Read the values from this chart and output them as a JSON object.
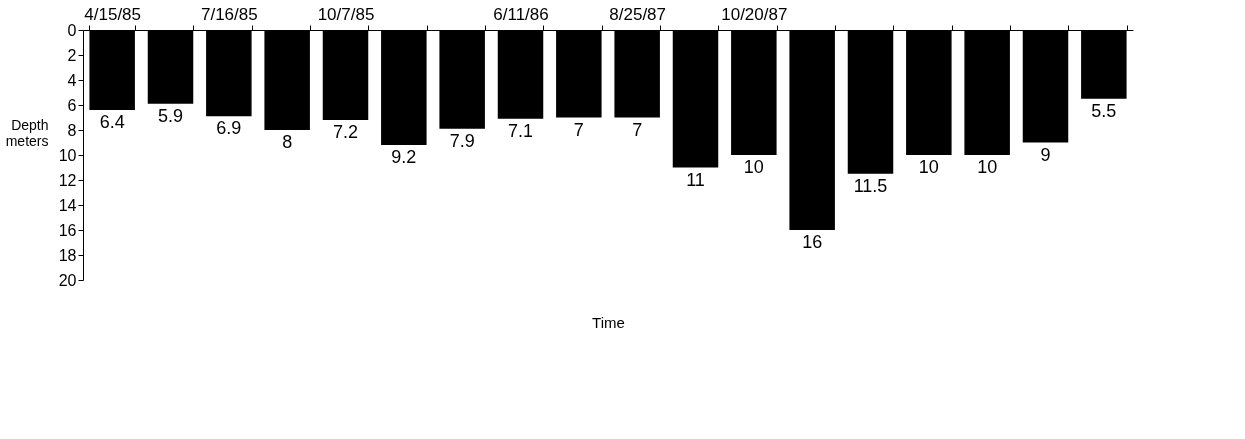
{
  "chart_data": {
    "type": "bar",
    "categories": [
      "4/15/85",
      null,
      "7/16/85",
      null,
      "10/7/85",
      null,
      null,
      "6/11/86",
      null,
      "8/25/87",
      null,
      "10/20/87",
      null,
      null,
      null,
      null,
      null,
      null
    ],
    "values": [
      6.4,
      5.9,
      6.9,
      8,
      7.2,
      9.2,
      7.9,
      7.1,
      7,
      7,
      11,
      10,
      16,
      11.5,
      10,
      10,
      9,
      5.5
    ],
    "color": "#000000",
    "ylim": [
      20,
      0
    ],
    "yticks": [
      0,
      2,
      4,
      6,
      8,
      10,
      12,
      14,
      16,
      18,
      20
    ],
    "ylabel": "Depth\nmeters",
    "xlabel": "Time",
    "data_labels": true,
    "grid": false
  }
}
